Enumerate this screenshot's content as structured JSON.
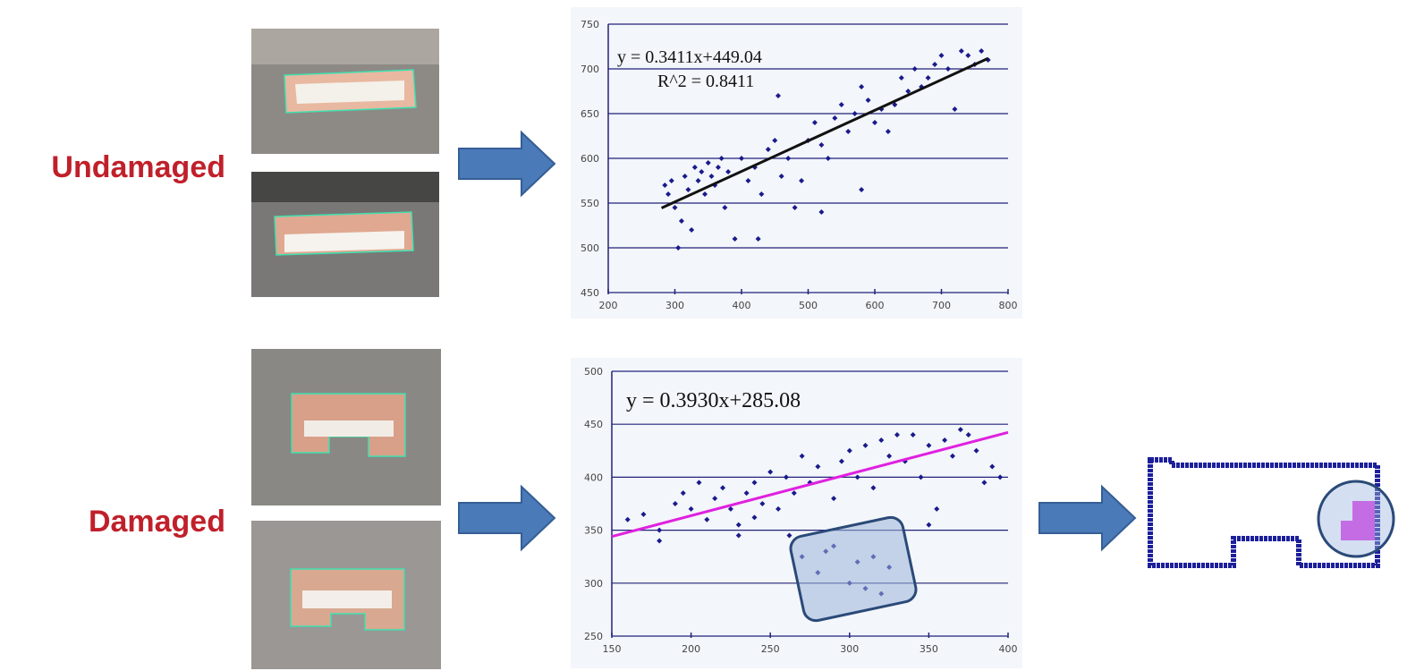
{
  "row_labels": [
    "Undamaged",
    "Damaged"
  ],
  "chart_data": [
    {
      "type": "scatter",
      "annotations": [
        "y = 0.3411x+449.04",
        "R^2 = 0.8411"
      ],
      "xlim": [
        200,
        800
      ],
      "xticks": [
        200,
        300,
        400,
        500,
        600,
        700,
        800
      ],
      "ylim": [
        450,
        750
      ],
      "yticks": [
        450,
        500,
        550,
        600,
        650,
        700,
        750
      ],
      "grid": true,
      "series": [
        {
          "color": "#1a1a8c",
          "x": [
            285,
            290,
            295,
            300,
            305,
            310,
            315,
            320,
            325,
            330,
            335,
            340,
            345,
            350,
            355,
            360,
            365,
            370,
            375,
            380,
            390,
            400,
            410,
            420,
            430,
            440,
            450,
            455,
            460,
            470,
            480,
            490,
            500,
            510,
            520,
            530,
            540,
            550,
            560,
            570,
            580,
            590,
            600,
            610,
            620,
            630,
            640,
            650,
            660,
            670,
            680,
            690,
            700,
            710,
            720,
            730,
            740,
            750,
            760,
            770,
            425,
            580,
            520
          ],
          "values": [
            570,
            560,
            575,
            545,
            500,
            530,
            580,
            565,
            520,
            590,
            575,
            585,
            560,
            595,
            580,
            570,
            590,
            600,
            545,
            585,
            510,
            600,
            575,
            590,
            560,
            610,
            620,
            670,
            580,
            600,
            545,
            575,
            620,
            640,
            615,
            600,
            645,
            660,
            630,
            650,
            680,
            665,
            640,
            655,
            630,
            660,
            690,
            675,
            700,
            680,
            690,
            705,
            715,
            700,
            655,
            720,
            715,
            705,
            720,
            710,
            510,
            565,
            540
          ]
        }
      ],
      "trendline": {
        "color": "#111111",
        "x": [
          280,
          770
        ],
        "values": [
          544.5,
          711.7
        ]
      }
    },
    {
      "type": "scatter",
      "annotations": [
        "y = 0.3930x+285.08"
      ],
      "xlim": [
        150,
        400
      ],
      "xticks": [
        150,
        200,
        250,
        300,
        350,
        400
      ],
      "ylim": [
        250,
        500
      ],
      "yticks": [
        250,
        300,
        350,
        400,
        450,
        500
      ],
      "grid": true,
      "series": [
        {
          "color": "#1a1a8c",
          "x": [
            160,
            170,
            180,
            190,
            195,
            200,
            205,
            210,
            215,
            220,
            225,
            230,
            235,
            240,
            245,
            250,
            255,
            260,
            265,
            270,
            275,
            280,
            285,
            290,
            295,
            300,
            305,
            310,
            315,
            320,
            325,
            330,
            335,
            340,
            345,
            350,
            355,
            360,
            365,
            370,
            375,
            380,
            385,
            390,
            395,
            270,
            280,
            290,
            300,
            305,
            310,
            315,
            320,
            325,
            262,
            230,
            240,
            180,
            350
          ],
          "values": [
            360,
            365,
            350,
            375,
            385,
            370,
            395,
            360,
            380,
            390,
            370,
            355,
            385,
            395,
            375,
            405,
            370,
            400,
            385,
            420,
            395,
            410,
            330,
            380,
            415,
            425,
            400,
            430,
            390,
            435,
            420,
            440,
            415,
            440,
            400,
            430,
            370,
            435,
            420,
            445,
            440,
            425,
            395,
            410,
            400,
            325,
            310,
            335,
            300,
            320,
            295,
            325,
            290,
            315,
            345,
            345,
            362,
            340,
            355
          ]
        }
      ],
      "trendline": {
        "color": "#e020e0",
        "x": [
          150,
          400
        ],
        "values": [
          344.0,
          442.3
        ]
      }
    }
  ]
}
